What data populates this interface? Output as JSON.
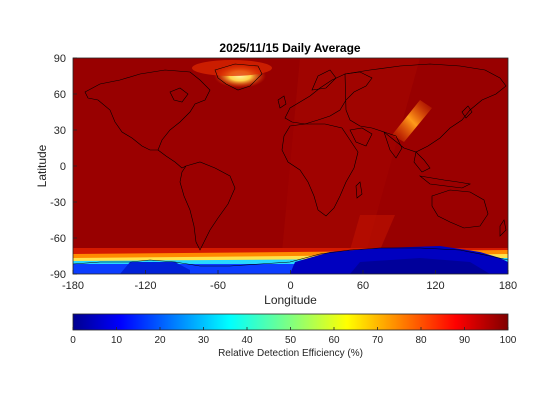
{
  "title": "2025/11/15 Daily Average",
  "map": {
    "xlabel": "Longitude",
    "ylabel": "Latitude",
    "xlim": [
      -180,
      180
    ],
    "ylim": [
      -90,
      90
    ],
    "xticks": [
      "-180",
      "-120",
      "-60",
      "0",
      "60",
      "120",
      "180"
    ],
    "yticks": [
      "90",
      "60",
      "30",
      "0",
      "-30",
      "-60",
      "-90"
    ],
    "field": "Relative Detection Efficiency (%)",
    "background_value": 98
  },
  "colorbar": {
    "label": "Relative Detection Efficiency (%)",
    "ticks": [
      "0",
      "10",
      "20",
      "30",
      "40",
      "50",
      "60",
      "70",
      "80",
      "90",
      "100"
    ],
    "range": [
      0,
      100
    ],
    "colormap": "jet"
  },
  "colors": {
    "high": "#8b0000",
    "red": "#d41a00",
    "orange": "#ff8c00",
    "yellow": "#ffef4a",
    "cyan": "#22d9ff",
    "blue": "#0b3cff",
    "navy": "#00008f"
  }
}
